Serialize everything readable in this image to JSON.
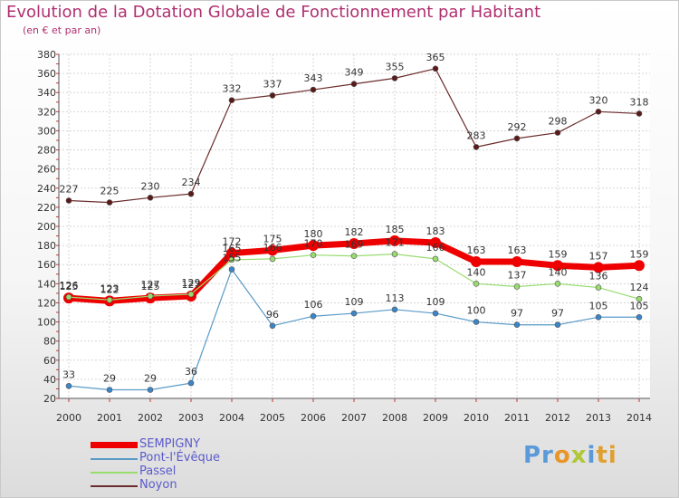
{
  "title": "Evolution de la Dotation Globale de Fonctionnement par Habitant",
  "subtitle": "(en € et par an)",
  "logo": {
    "parts": [
      "Pr",
      "o",
      "x",
      "i",
      "ti"
    ],
    "colors": [
      "#5a9ad8",
      "#e8962a",
      "#b0c838",
      "#5a9ad8",
      "#e0a030"
    ]
  },
  "chart_data": {
    "type": "line",
    "title": "Evolution de la Dotation Globale de Fonctionnement par Habitant",
    "ylabel": "(en € et par an)",
    "xlabel": "",
    "categories": [
      "2000",
      "2001",
      "2002",
      "2003",
      "2004",
      "2005",
      "2006",
      "2007",
      "2008",
      "2009",
      "2010",
      "2011",
      "2012",
      "2013",
      "2014"
    ],
    "ylim": [
      20,
      380
    ],
    "yticks": [
      20,
      40,
      60,
      80,
      100,
      120,
      140,
      160,
      180,
      200,
      220,
      240,
      260,
      280,
      300,
      320,
      340,
      360,
      380
    ],
    "grid": true,
    "legend_position": "bottom-left",
    "series": [
      {
        "name": "SEMPIGNY",
        "color": "#ee0000",
        "values": [
          125,
          122,
          125,
          127,
          172,
          175,
          180,
          182,
          185,
          183,
          163,
          163,
          159,
          157,
          159
        ]
      },
      {
        "name": "Pont-l'Évêque",
        "color": "#5a9bc8",
        "values": [
          33,
          29,
          29,
          36,
          155,
          96,
          106,
          109,
          113,
          109,
          100,
          97,
          97,
          105,
          105
        ]
      },
      {
        "name": "Passel",
        "color": "#98dc70",
        "values": [
          126,
          123,
          127,
          129,
          165,
          166,
          170,
          169,
          171,
          166,
          140,
          137,
          140,
          136,
          124
        ]
      },
      {
        "name": "Noyon",
        "color": "#6b2c2c",
        "values": [
          227,
          225,
          230,
          234,
          332,
          337,
          343,
          349,
          355,
          365,
          283,
          292,
          298,
          320,
          318
        ]
      }
    ]
  }
}
